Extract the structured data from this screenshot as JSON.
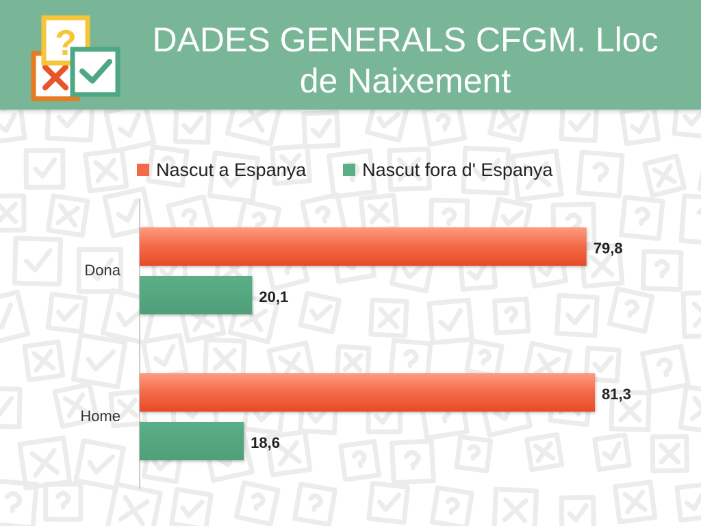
{
  "slide": {
    "title_line1": "DADES GENERALS CFGM. Lloc",
    "title_line2": "de Naixement"
  },
  "colors": {
    "header": "#79b697",
    "series1": "#f26a48",
    "series2": "#5aaf87"
  },
  "icons": {
    "logo": "question-check-cross-icon"
  },
  "chart_data": {
    "type": "bar",
    "orientation": "horizontal",
    "categories": [
      "Dona",
      "Home"
    ],
    "series": [
      {
        "name": "Nascut a Espanya",
        "values": [
          79.8,
          81.3
        ]
      },
      {
        "name": "Nascut fora d' Espanya",
        "values": [
          20.1,
          18.6
        ]
      }
    ],
    "data_labels": [
      [
        "79,8",
        "81,3"
      ],
      [
        "20,1",
        "18,6"
      ]
    ],
    "xlim": [
      0,
      90
    ],
    "legend_position": "top",
    "grid": false
  }
}
